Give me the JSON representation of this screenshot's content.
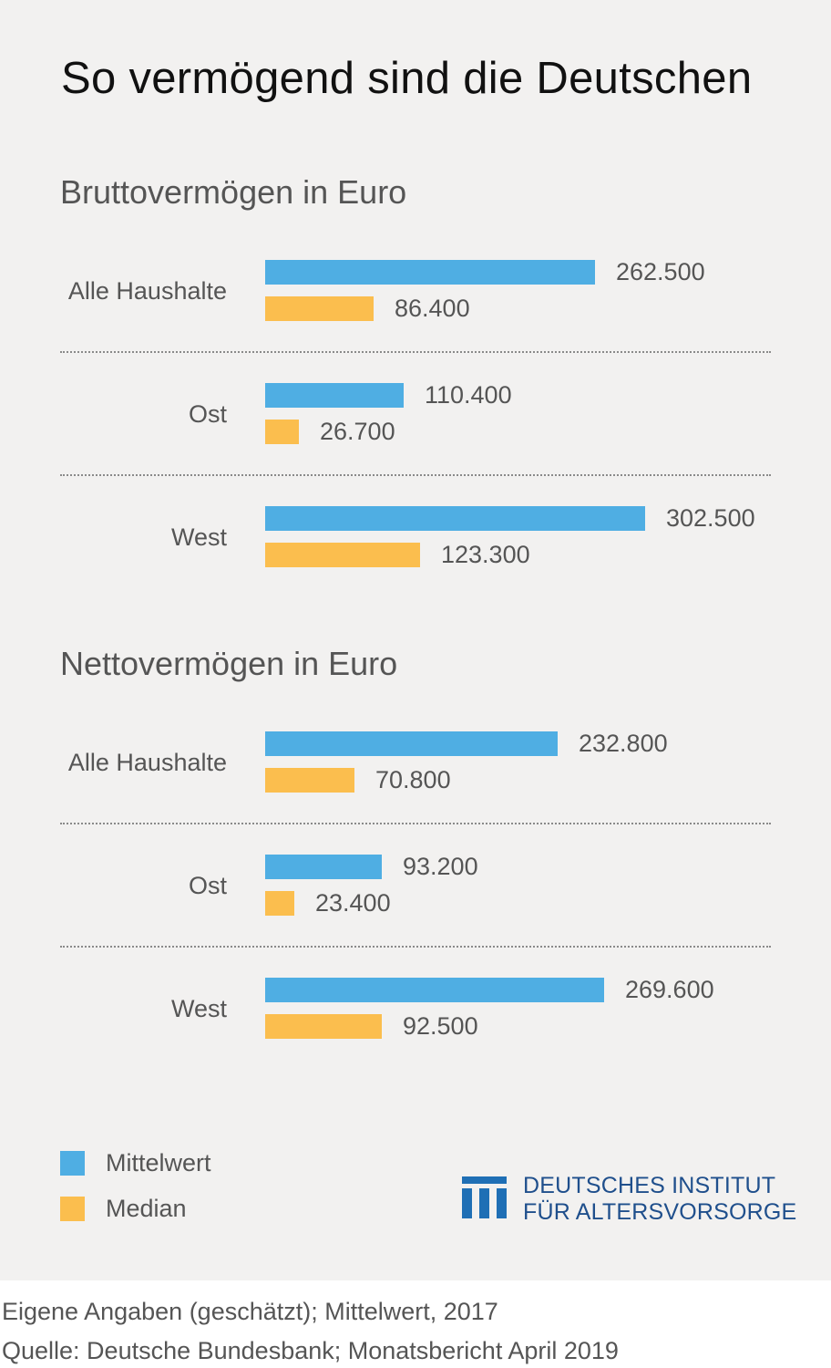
{
  "title": "So vermögend sind die Deutschen",
  "colors": {
    "mean": "#4faee3",
    "median": "#fbbe4e",
    "background": "#f2f1f0",
    "logo": "#1f4f8c"
  },
  "chart_data": [
    {
      "type": "bar",
      "orientation": "horizontal",
      "title": "Bruttovermögen in Euro",
      "categories": [
        "Alle Haushalte",
        "Ost",
        "West"
      ],
      "series": [
        {
          "name": "Mittelwert",
          "values": [
            262500,
            110400,
            302500
          ],
          "labels": [
            "262.500",
            "110.400",
            "302.500"
          ]
        },
        {
          "name": "Median",
          "values": [
            86400,
            26700,
            123300
          ],
          "labels": [
            "86.400",
            "26.700",
            "123.300"
          ]
        }
      ],
      "grid": false
    },
    {
      "type": "bar",
      "orientation": "horizontal",
      "title": "Nettovermögen in Euro",
      "categories": [
        "Alle Haushalte",
        "Ost",
        "West"
      ],
      "series": [
        {
          "name": "Mittelwert",
          "values": [
            232800,
            93200,
            269600
          ],
          "labels": [
            "232.800",
            "93.200",
            "269.600"
          ]
        },
        {
          "name": "Median",
          "values": [
            70800,
            23400,
            92500
          ],
          "labels": [
            "70.800",
            "23.400",
            "92.500"
          ]
        }
      ],
      "grid": false
    }
  ],
  "legend": {
    "placement": "bottom-left",
    "items": [
      "Mittelwert",
      "Median"
    ]
  },
  "logo": {
    "line1": "DEUTSCHES INSTITUT",
    "line2": "FÜR ALTERSVORSORGE"
  },
  "footnotes": [
    "Eigene Angaben (geschätzt); Mittelwert, 2017",
    "Quelle: Deutsche Bundesbank; Monatsbericht April 2019"
  ]
}
